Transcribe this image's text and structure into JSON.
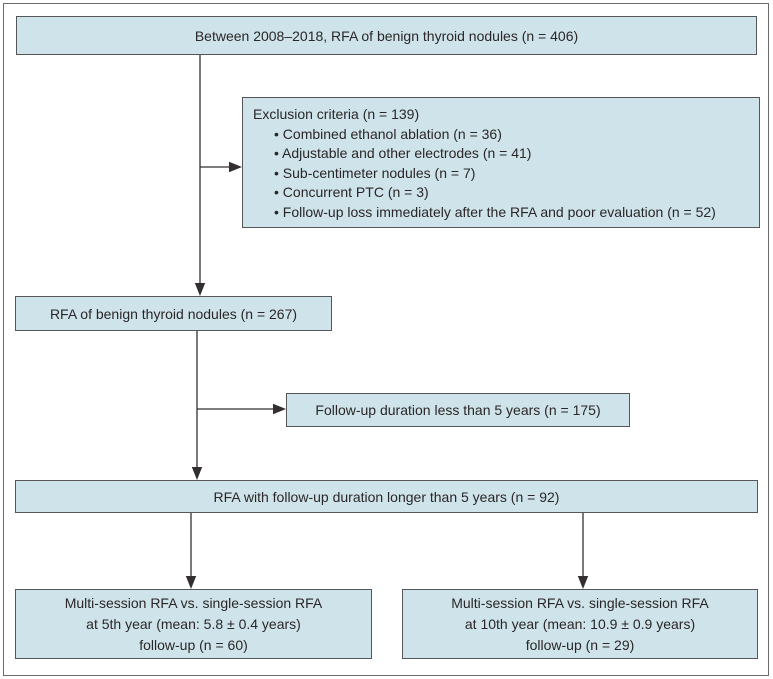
{
  "colors": {
    "box_fill": "#cee4ea",
    "box_border": "#55565a",
    "arrow_color": "#332f30",
    "frame_border": "#6a6b6e",
    "text_color": "#2b2627"
  },
  "boxes": {
    "initial": {
      "text": "Between 2008–2018, RFA of benign thyroid nodules (n = 406)"
    },
    "exclusion": {
      "title": "Exclusion criteria (n = 139)",
      "items": [
        "• Combined ethanol ablation (n = 36)",
        "• Adjustable and other electrodes (n = 41)",
        "• Sub-centimeter nodules (n = 7)",
        "• Concurrent PTC (n = 3)",
        "• Follow-up loss immediately after the RFA and poor evaluation (n = 52)"
      ]
    },
    "rfa_benign": {
      "text": "RFA of benign thyroid nodules (n = 267)"
    },
    "short_followup": {
      "text": "Follow-up duration less than 5 years (n = 175)"
    },
    "long_followup": {
      "text": "RFA with follow-up duration longer than 5 years (n = 92)"
    },
    "fifth_year": {
      "lines": [
        "Multi-session RFA vs. single-session RFA",
        "at 5th year (mean: 5.8 ± 0.4 years)",
        "follow-up (n = 60)"
      ]
    },
    "tenth_year": {
      "lines": [
        "Multi-session RFA vs. single-session RFA",
        "at 10th year (mean: 10.9 ± 0.9 years)",
        "follow-up (n = 29)"
      ]
    }
  }
}
